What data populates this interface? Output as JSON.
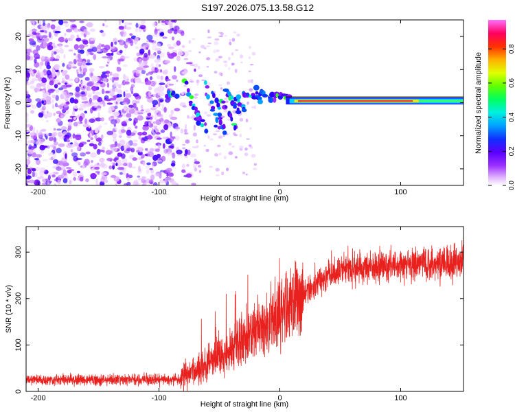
{
  "title": "S197.2026.075.13.58.G12",
  "colors": {
    "snr_line": "#e8211e",
    "axis": "#000000",
    "cmap": [
      "#ffffff",
      "#e0b0ff",
      "#9b30ff",
      "#6a00ff",
      "#2a00ff",
      "#0050ff",
      "#00c8ff",
      "#00ff90",
      "#40ff00",
      "#d0ff00",
      "#ffc000",
      "#ff4000",
      "#ff0040",
      "#ff60ff"
    ]
  },
  "chart_data": [
    {
      "type": "heatmap",
      "title": "S197.2026.075.13.58.G12",
      "xlabel": "Height of straight line (km)",
      "ylabel": "Frequency (Hz)",
      "xlim": [
        -210,
        152
      ],
      "ylim": [
        -25,
        25
      ],
      "xticks": [
        -200,
        -100,
        0,
        100
      ],
      "yticks": [
        -20,
        -10,
        0,
        10,
        20
      ],
      "colorbar": {
        "label": "Normalized spectral amplitude",
        "range": [
          0.0,
          0.97
        ],
        "ticks": [
          0.0,
          0.2,
          0.4,
          0.6,
          0.8
        ]
      },
      "features": [
        {
          "name": "noise",
          "x_range": [
            -210,
            -80
          ],
          "freq_range": [
            -25,
            25
          ],
          "amplitude": 0.1
        },
        {
          "name": "dispersive arcs",
          "x_range": [
            -95,
            -30
          ],
          "freq_range": [
            -10,
            10
          ],
          "amplitude": 0.35
        },
        {
          "name": "signal band",
          "x_range": [
            5,
            152
          ],
          "freq": 0.5,
          "amplitude": 0.9
        }
      ]
    },
    {
      "type": "line",
      "xlabel": "Height of straight line (km)",
      "ylabel": "SNR (10 * v/v)",
      "xlim": [
        -210,
        152
      ],
      "ylim": [
        0,
        355
      ],
      "xticks": [
        -200,
        -100,
        0,
        100
      ],
      "yticks": [
        0,
        100,
        200,
        300
      ],
      "series": [
        {
          "name": "SNR",
          "x": [
            -210,
            -150,
            -100,
            -82,
            -80,
            -70,
            -60,
            -50,
            -40,
            -30,
            -20,
            -10,
            0,
            10,
            20,
            30,
            40,
            50,
            60,
            80,
            100,
            120,
            140,
            150
          ],
          "y": [
            25,
            25,
            25,
            25,
            35,
            45,
            60,
            75,
            95,
            110,
            130,
            145,
            165,
            190,
            215,
            235,
            250,
            260,
            265,
            270,
            272,
            275,
            278,
            280
          ]
        }
      ]
    }
  ]
}
